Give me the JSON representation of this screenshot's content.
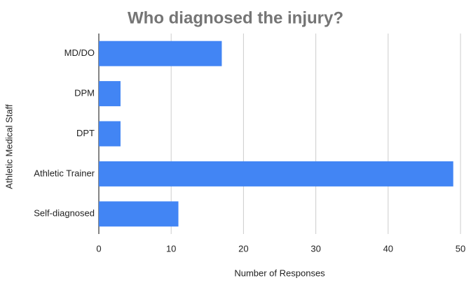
{
  "chart_data": {
    "type": "bar",
    "orientation": "horizontal",
    "title": "Who diagnosed the injury?",
    "x_label": "Number of Responses",
    "y_label": "Athletic Medical Staff",
    "categories": [
      "MD/DO",
      "DPM",
      "DPT",
      "Athletic Trainer",
      "Self-diagnosed"
    ],
    "values": [
      17,
      3,
      3,
      49,
      11
    ],
    "color": "#4285f4",
    "xlim": [
      0,
      50
    ],
    "xticks": [
      0,
      10,
      20,
      30,
      40,
      50
    ],
    "grid": true
  }
}
